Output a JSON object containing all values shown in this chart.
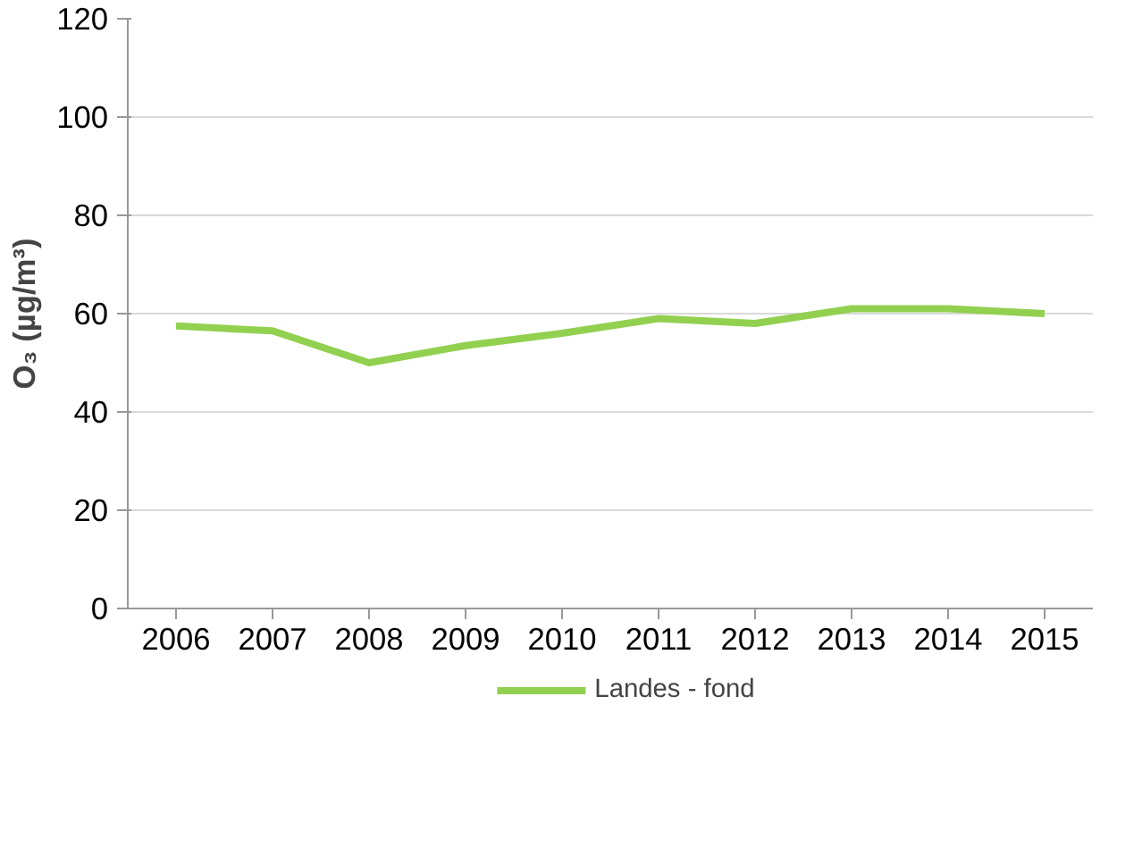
{
  "chart_data": {
    "type": "line",
    "ylabel": "O₃ (µg/m³)",
    "categories": [
      "2006",
      "2007",
      "2008",
      "2009",
      "2010",
      "2011",
      "2012",
      "2013",
      "2014",
      "2015"
    ],
    "series": [
      {
        "name": "Landes - fond",
        "color": "#92d050",
        "values": [
          57.5,
          56.5,
          50,
          53.5,
          56,
          59,
          58,
          61,
          61,
          60
        ]
      }
    ],
    "ylim": [
      0,
      120
    ],
    "yticks": [
      0,
      20,
      40,
      60,
      80,
      100,
      120
    ],
    "grid": "y",
    "legend": "bottom",
    "marker": "none",
    "line_style": "solid"
  }
}
